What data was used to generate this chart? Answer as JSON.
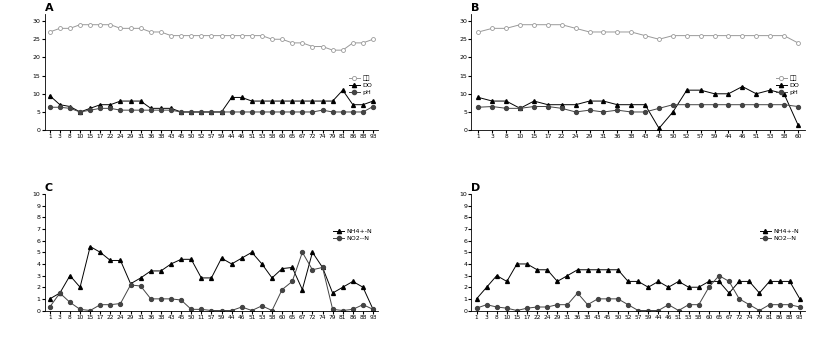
{
  "panel_A": {
    "label": "A",
    "x_ticks": [
      1,
      3,
      8,
      10,
      15,
      17,
      22,
      24,
      29,
      31,
      36,
      38,
      43,
      45,
      50,
      52,
      57,
      59,
      44,
      46,
      51,
      53,
      58,
      60,
      65,
      67,
      72,
      74,
      79,
      81,
      86,
      88,
      93
    ],
    "temp": [
      27,
      28,
      28,
      29,
      29,
      29,
      29,
      28,
      28,
      28,
      27,
      27,
      26,
      26,
      26,
      26,
      26,
      26,
      26,
      26,
      26,
      26,
      25,
      25,
      24,
      24,
      23,
      23,
      22,
      22,
      24,
      24,
      25
    ],
    "DO": [
      9.5,
      7,
      6.5,
      5,
      6,
      7,
      7,
      8,
      8,
      8,
      6,
      6,
      6,
      5,
      5,
      5,
      5,
      5,
      9,
      9,
      8,
      8,
      8,
      8,
      8,
      8,
      8,
      8,
      8,
      11,
      7,
      7,
      8
    ],
    "pH": [
      6.3,
      6.3,
      6,
      5,
      5.5,
      6,
      6,
      5.5,
      5.5,
      5.5,
      5.5,
      5.5,
      5.5,
      5,
      5,
      5,
      5,
      5,
      5,
      5,
      5,
      5,
      5,
      5,
      5,
      5,
      5,
      5.5,
      5,
      5,
      5,
      5,
      6.5
    ],
    "ylim": [
      0,
      32
    ],
    "yticks": [
      0,
      5,
      10,
      15,
      20,
      25,
      30
    ],
    "legend": [
      "수온",
      "DO",
      "pH"
    ]
  },
  "panel_B": {
    "label": "B",
    "x_ticks": [
      1,
      3,
      8,
      10,
      15,
      17,
      22,
      24,
      29,
      31,
      36,
      38,
      43,
      45,
      50,
      52,
      57,
      59,
      44,
      46,
      51,
      53,
      58,
      60
    ],
    "temp": [
      27,
      28,
      28,
      29,
      29,
      29,
      29,
      28,
      27,
      27,
      27,
      27,
      26,
      25,
      26,
      26,
      26,
      26,
      26,
      26,
      26,
      26,
      26,
      24
    ],
    "DO": [
      9,
      8,
      8,
      6,
      8,
      7,
      7,
      7,
      8,
      8,
      7,
      7,
      7,
      0.5,
      5,
      11,
      11,
      10,
      10,
      12,
      10,
      11,
      10,
      1.5
    ],
    "pH": [
      6.3,
      6.5,
      6,
      6,
      6.5,
      6.5,
      6,
      5,
      5.5,
      5,
      5.5,
      5,
      5,
      6,
      7,
      7,
      7,
      7,
      7,
      7,
      7,
      7,
      7,
      6.5
    ],
    "ylim": [
      0,
      32
    ],
    "yticks": [
      0,
      5,
      10,
      15,
      20,
      25,
      30
    ],
    "legend": [
      "수온",
      "DO",
      "pH"
    ]
  },
  "panel_C": {
    "label": "C",
    "x_ticks": [
      1,
      3,
      8,
      10,
      15,
      17,
      22,
      24,
      29,
      31,
      36,
      38,
      43,
      45,
      50,
      11,
      57,
      59,
      44,
      46,
      51,
      53,
      58,
      60,
      65,
      67,
      72,
      74,
      79,
      81,
      86,
      88,
      93
    ],
    "NH4": [
      1,
      1.5,
      3,
      2,
      5.5,
      5,
      4.3,
      4.3,
      2.3,
      2.8,
      3.4,
      3.4,
      4,
      4.4,
      4.4,
      2.8,
      2.8,
      4.5,
      4,
      4.5,
      5,
      4,
      2.8,
      3.6,
      3.7,
      1.8,
      5,
      3.7,
      1.5,
      2,
      2.5,
      2,
      0.1
    ],
    "NO2": [
      0.3,
      1.5,
      0.7,
      0.1,
      0,
      0.5,
      0.5,
      0.6,
      2.2,
      2.1,
      1,
      1,
      1,
      0.9,
      0.1,
      0.1,
      0,
      0,
      0,
      0.3,
      0,
      0.4,
      0,
      1.8,
      2.5,
      5,
      3.5,
      3.7,
      0.1,
      0,
      0.1,
      0.5,
      0.1
    ],
    "ylim": [
      0,
      10
    ],
    "yticks": [
      0,
      1,
      2,
      3,
      4,
      5,
      6,
      7,
      8,
      9,
      10
    ],
    "legend": [
      "NH4+-N",
      "NO2--N"
    ]
  },
  "panel_D": {
    "label": "D",
    "x_ticks": [
      1,
      3,
      8,
      10,
      15,
      17,
      22,
      24,
      29,
      31,
      36,
      38,
      43,
      45,
      50,
      52,
      57,
      59,
      44,
      46,
      51,
      53,
      58,
      60,
      65,
      67,
      72,
      74,
      79,
      81,
      86,
      88,
      93
    ],
    "NH4": [
      1,
      2,
      3,
      2.5,
      4,
      4,
      3.5,
      3.5,
      2.5,
      3,
      3.5,
      3.5,
      3.5,
      3.5,
      3.5,
      2.5,
      2.5,
      2,
      2.5,
      2,
      2.5,
      2,
      2,
      2.5,
      2.5,
      1.5,
      2.5,
      2.5,
      1.5,
      2.5,
      2.5,
      2.5,
      1
    ],
    "NO2": [
      0.2,
      0.5,
      0.3,
      0.2,
      0,
      0.2,
      0.3,
      0.3,
      0.5,
      0.5,
      1.5,
      0.5,
      1,
      1,
      1,
      0.5,
      0,
      0,
      0,
      0.5,
      0,
      0.5,
      0.5,
      2,
      3,
      2.5,
      1,
      0.5,
      0,
      0.5,
      0.5,
      0.5,
      0.3
    ],
    "ylim": [
      0,
      10
    ],
    "yticks": [
      0,
      1,
      2,
      3,
      4,
      5,
      6,
      7,
      8,
      9,
      10
    ],
    "legend": [
      "NH4+-N",
      "NO2--N"
    ]
  }
}
